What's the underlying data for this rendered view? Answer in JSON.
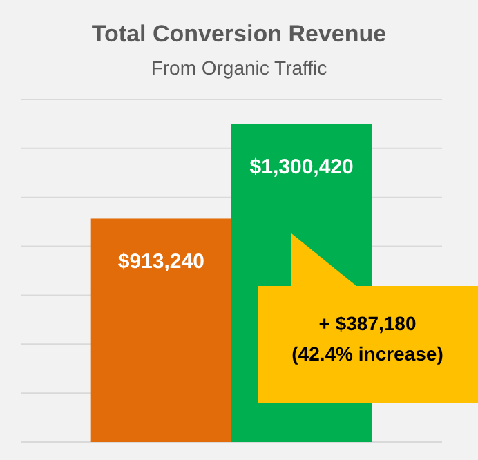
{
  "chart_data": {
    "type": "bar",
    "title": "Total Conversion Revenue",
    "subtitle": "From Organic Traffic",
    "categories": [
      null,
      null
    ],
    "values": [
      913240,
      1300420
    ],
    "colors": [
      "#e36c0a",
      "#00b050"
    ],
    "value_labels": [
      "$913,240",
      "$1,300,420"
    ],
    "ylim": [
      0,
      1400000
    ],
    "yticks": [
      {
        "value": 0,
        "label": null
      },
      {
        "value": 200000,
        "label": null
      },
      {
        "value": 400000,
        "label": null
      },
      {
        "value": 600000,
        "label": null
      },
      {
        "value": 800000,
        "label": null
      },
      {
        "value": 1000000,
        "label": null
      },
      {
        "value": 1200000,
        "label": null
      },
      {
        "value": 1400000,
        "label": null
      }
    ],
    "grid": "y",
    "annotations": [
      "+ $387,180\n(42.4% increase)"
    ]
  }
}
